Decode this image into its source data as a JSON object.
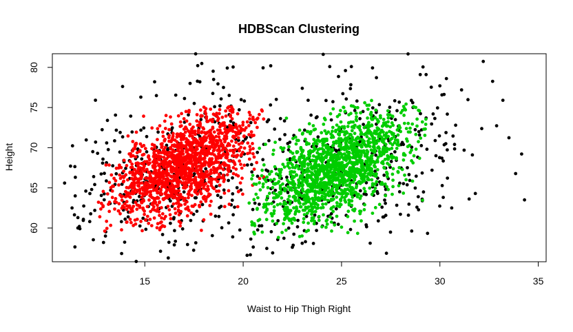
{
  "chart_data": {
    "type": "scatter",
    "title": "HDBScan Clustering",
    "xlabel": "Waist to Hip Thigh Right",
    "ylabel": "Height",
    "xlim": [
      10.3,
      35.4
    ],
    "ylim": [
      55.8,
      81.7
    ],
    "x_ticks": [
      15,
      20,
      25,
      30,
      35
    ],
    "y_ticks": [
      60,
      65,
      70,
      75,
      80
    ],
    "grid": false,
    "legend": "none",
    "series": [
      {
        "color": "#000000",
        "generator": {
          "clusters": [
            {
              "mean_x": 16.5,
              "mean_y": 67.5,
              "sd_x": 2.4,
              "sd_y": 5.2,
              "rho": 0.35,
              "count": 330
            },
            {
              "mean_x": 25.2,
              "mean_y": 68.0,
              "sd_x": 2.9,
              "sd_y": 5.4,
              "rho": 0.35,
              "count": 330
            }
          ],
          "seed": 7
        },
        "points": [
          [
            11.3,
            62.5
          ],
          [
            11.6,
            61.3
          ],
          [
            11.6,
            60.0
          ],
          [
            12.2,
            60.8
          ],
          [
            12.0,
            64.6
          ],
          [
            12.3,
            64.8
          ],
          [
            12.4,
            66.4
          ],
          [
            12.6,
            69.3
          ],
          [
            12.5,
            70.7
          ],
          [
            13.1,
            73.4
          ],
          [
            13.0,
            59.0
          ],
          [
            12.9,
            58.2
          ],
          [
            15.5,
            78.2
          ],
          [
            14.8,
            76.3
          ],
          [
            18.5,
            78.5
          ],
          [
            17.8,
            78.2
          ],
          [
            19.0,
            77.5
          ],
          [
            16.5,
            57.9
          ],
          [
            15.8,
            57.1
          ],
          [
            20.2,
            56.6
          ],
          [
            21.4,
            80.2
          ],
          [
            21.5,
            56.9
          ],
          [
            22.5,
            57.6
          ],
          [
            23.0,
            58.1
          ],
          [
            24.4,
            80.1
          ],
          [
            25.5,
            80.1
          ],
          [
            25.2,
            79.6
          ],
          [
            23.3,
            75.9
          ],
          [
            29.0,
            79.1
          ],
          [
            29.3,
            79.1
          ],
          [
            30.0,
            77.7
          ],
          [
            31.1,
            77.2
          ],
          [
            33.2,
            75.9
          ],
          [
            30.8,
            72.8
          ],
          [
            30.3,
            70.5
          ],
          [
            30.1,
            68.7
          ],
          [
            31.8,
            64.3
          ],
          [
            30.6,
            62.5
          ],
          [
            34.3,
            63.5
          ],
          [
            29.1,
            63.6
          ],
          [
            28.9,
            63.9
          ],
          [
            28.4,
            61.6
          ],
          [
            29.6,
            67.2
          ],
          [
            29.8,
            69.0
          ],
          [
            29.3,
            73.7
          ]
        ]
      },
      {
        "color": "#ff0000",
        "generator": {
          "clusters": [
            {
              "mean_x": 16.9,
              "mean_y": 67.8,
              "sd_x": 1.8,
              "sd_y": 3.5,
              "rho": 0.55,
              "count": 1500
            }
          ],
          "seed": 11,
          "bounds": {
            "x": [
              12.6,
              21.1
            ],
            "y": [
              59.6,
              75.1
            ]
          }
        }
      },
      {
        "color": "#00cd00",
        "generator": {
          "clusters": [
            {
              "mean_x": 24.6,
              "mean_y": 67.2,
              "sd_x": 1.9,
              "sd_y": 3.6,
              "rho": 0.55,
              "count": 1500
            }
          ],
          "seed": 23,
          "bounds": {
            "x": [
              20.3,
              29.4
            ],
            "y": [
              58.8,
              76.0
            ]
          }
        }
      }
    ]
  }
}
